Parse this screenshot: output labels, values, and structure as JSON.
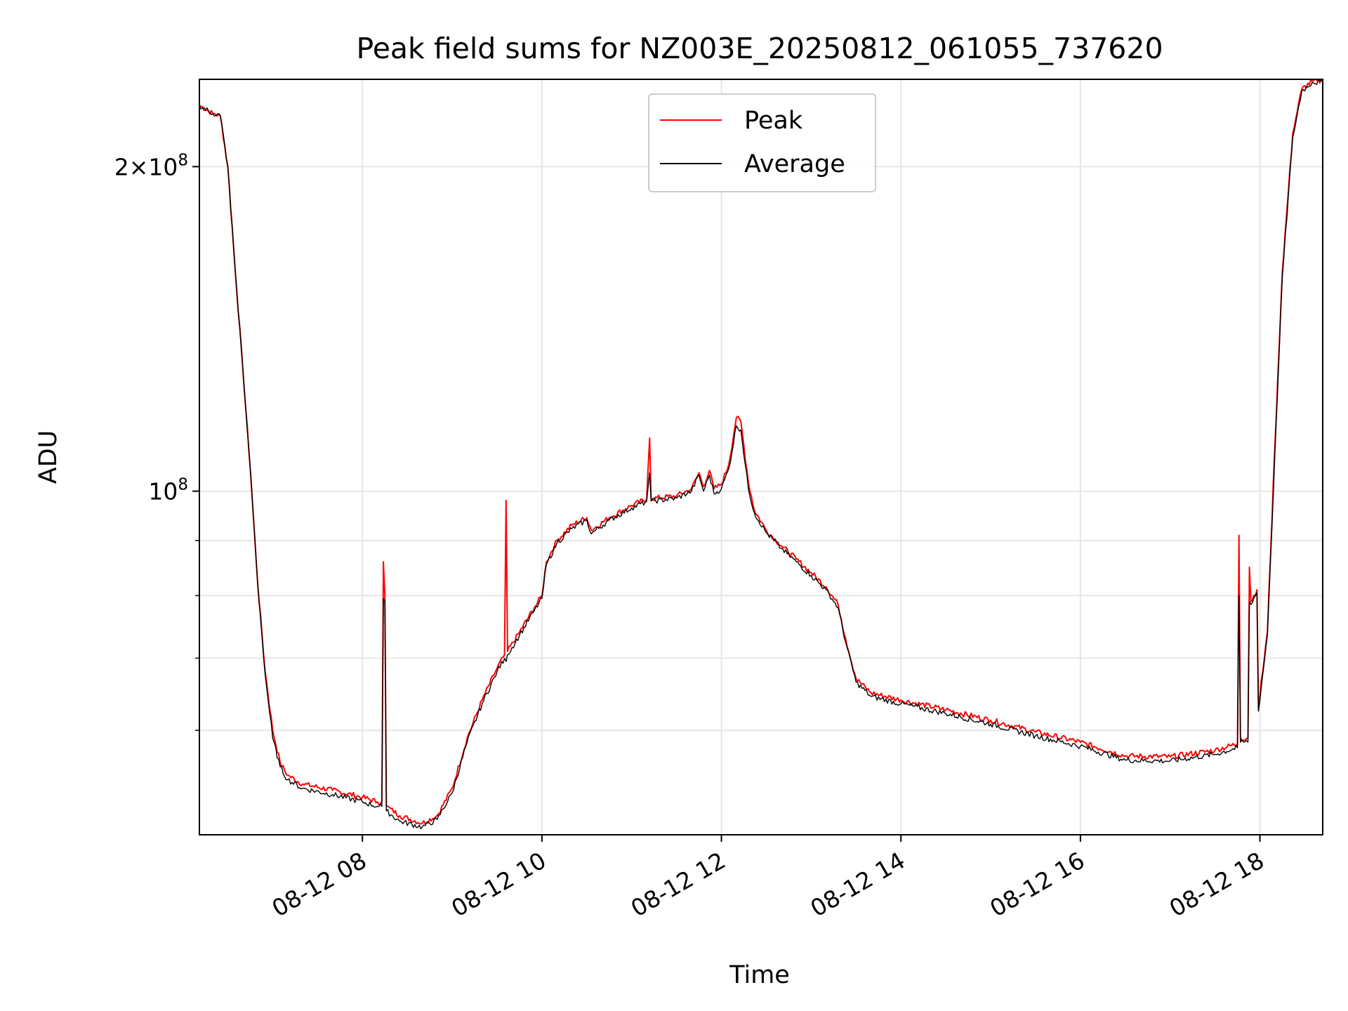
{
  "chart_data": {
    "type": "line",
    "title": "Peak field sums for NZ003E_20250812_061055_737620",
    "xlabel": "Time",
    "ylabel": "ADU",
    "y_scale": "log",
    "grid": true,
    "legend_position": "top-center",
    "xlim": [
      "2025-08-12 06:11",
      "2025-08-12 18:42"
    ],
    "ylim": [
      48000000,
      241000000
    ],
    "x_ticks": [
      "08-12 08",
      "08-12 10",
      "08-12 12",
      "08-12 14",
      "08-12 16",
      "08-12 18"
    ],
    "x_tick_times": [
      "2025-08-12 08:00",
      "2025-08-12 10:00",
      "2025-08-12 12:00",
      "2025-08-12 14:00",
      "2025-08-12 16:00",
      "2025-08-12 18:00"
    ],
    "y_ticks_major": [
      {
        "value": 100000000,
        "base": "10",
        "exp": "8"
      },
      {
        "value": 200000000,
        "prefix": "2×",
        "base": "10",
        "exp": "8"
      }
    ],
    "y_ticks_minor": [
      60000000,
      70000000,
      80000000,
      90000000
    ],
    "series": [
      {
        "name": "Peak",
        "color": "#ff0000",
        "points": [
          [
            "06:11",
            228000000
          ],
          [
            "06:20",
            224000000
          ],
          [
            "06:25",
            223000000
          ],
          [
            "06:30",
            200000000
          ],
          [
            "06:35",
            160000000
          ],
          [
            "06:40",
            130000000
          ],
          [
            "06:45",
            105000000
          ],
          [
            "06:50",
            82000000
          ],
          [
            "06:55",
            68000000
          ],
          [
            "07:00",
            60000000
          ],
          [
            "07:05",
            56000000
          ],
          [
            "07:10",
            54500000
          ],
          [
            "07:20",
            53500000
          ],
          [
            "07:40",
            52800000
          ],
          [
            "08:00",
            52000000
          ],
          [
            "08:10",
            51500000
          ],
          [
            "08:13",
            51500000
          ],
          [
            "08:14",
            86000000
          ],
          [
            "08:15",
            80000000
          ],
          [
            "08:16",
            51000000
          ],
          [
            "08:25",
            50000000
          ],
          [
            "08:40",
            49200000
          ],
          [
            "08:50",
            50000000
          ],
          [
            "09:00",
            53000000
          ],
          [
            "09:10",
            59000000
          ],
          [
            "09:20",
            64000000
          ],
          [
            "09:30",
            68500000
          ],
          [
            "09:35",
            70500000
          ],
          [
            "09:36",
            98000000
          ],
          [
            "09:37",
            71000000
          ],
          [
            "09:45",
            74000000
          ],
          [
            "09:55",
            78000000
          ],
          [
            "10:00",
            80000000
          ],
          [
            "10:03",
            86000000
          ],
          [
            "10:10",
            90000000
          ],
          [
            "10:20",
            93000000
          ],
          [
            "10:30",
            94500000
          ],
          [
            "10:33",
            92000000
          ],
          [
            "10:45",
            94500000
          ],
          [
            "11:00",
            97000000
          ],
          [
            "11:10",
            98300000
          ],
          [
            "11:12",
            112000000
          ],
          [
            "11:13",
            98400000
          ],
          [
            "11:30",
            99000000
          ],
          [
            "11:40",
            100500000
          ],
          [
            "11:45",
            104000000
          ],
          [
            "11:48",
            101000000
          ],
          [
            "11:52",
            104500000
          ],
          [
            "11:55",
            100500000
          ],
          [
            "12:00",
            101500000
          ],
          [
            "12:05",
            106000000
          ],
          [
            "12:10",
            117000000
          ],
          [
            "12:13",
            116000000
          ],
          [
            "12:18",
            102000000
          ],
          [
            "12:22",
            96000000
          ],
          [
            "12:30",
            92000000
          ],
          [
            "12:40",
            89000000
          ],
          [
            "12:50",
            86500000
          ],
          [
            "13:00",
            84000000
          ],
          [
            "13:10",
            81500000
          ],
          [
            "13:18",
            78500000
          ],
          [
            "13:23",
            73000000
          ],
          [
            "13:30",
            67000000
          ],
          [
            "13:40",
            65000000
          ],
          [
            "14:00",
            64000000
          ],
          [
            "14:30",
            62700000
          ],
          [
            "15:00",
            61300000
          ],
          [
            "15:30",
            59800000
          ],
          [
            "16:00",
            58500000
          ],
          [
            "16:30",
            56800000
          ],
          [
            "17:00",
            56700000
          ],
          [
            "17:30",
            57500000
          ],
          [
            "17:45",
            58300000
          ],
          [
            "17:46",
            91000000
          ],
          [
            "17:47",
            59000000
          ],
          [
            "17:52",
            59000000
          ],
          [
            "17:53",
            85000000
          ],
          [
            "17:54",
            79000000
          ],
          [
            "17:58",
            81000000
          ],
          [
            "17:59",
            63000000
          ],
          [
            "18:05",
            74000000
          ],
          [
            "18:10",
            110000000
          ],
          [
            "18:15",
            160000000
          ],
          [
            "18:22",
            215000000
          ],
          [
            "18:28",
            236000000
          ],
          [
            "18:35",
            240000000
          ],
          [
            "18:42",
            240000000
          ]
        ]
      },
      {
        "name": "Average",
        "color": "#000000",
        "points": [
          [
            "06:11",
            228000000
          ],
          [
            "06:20",
            224000000
          ],
          [
            "06:25",
            223000000
          ],
          [
            "06:30",
            200000000
          ],
          [
            "06:35",
            160000000
          ],
          [
            "06:40",
            130000000
          ],
          [
            "06:45",
            105000000
          ],
          [
            "06:50",
            82000000
          ],
          [
            "06:55",
            67500000
          ],
          [
            "07:00",
            59000000
          ],
          [
            "07:05",
            55500000
          ],
          [
            "07:10",
            54000000
          ],
          [
            "07:20",
            53000000
          ],
          [
            "07:40",
            52300000
          ],
          [
            "08:00",
            51500000
          ],
          [
            "08:10",
            51000000
          ],
          [
            "08:13",
            51000000
          ],
          [
            "08:14",
            79500000
          ],
          [
            "08:15",
            79000000
          ],
          [
            "08:16",
            50500000
          ],
          [
            "08:25",
            49400000
          ],
          [
            "08:40",
            48800000
          ],
          [
            "08:50",
            49600000
          ],
          [
            "09:00",
            52500000
          ],
          [
            "09:10",
            58500000
          ],
          [
            "09:20",
            63500000
          ],
          [
            "09:30",
            68000000
          ],
          [
            "09:35",
            70000000
          ],
          [
            "09:36",
            69500000
          ],
          [
            "09:37",
            70500000
          ],
          [
            "09:45",
            73500000
          ],
          [
            "09:55",
            77500000
          ],
          [
            "10:00",
            79500000
          ],
          [
            "10:03",
            85500000
          ],
          [
            "10:10",
            89500000
          ],
          [
            "10:20",
            92300000
          ],
          [
            "10:30",
            94000000
          ],
          [
            "10:33",
            91300000
          ],
          [
            "10:45",
            94000000
          ],
          [
            "11:00",
            96500000
          ],
          [
            "11:10",
            97800000
          ],
          [
            "11:12",
            104000000
          ],
          [
            "11:13",
            97900000
          ],
          [
            "11:30",
            98500000
          ],
          [
            "11:40",
            100000000
          ],
          [
            "11:45",
            103500000
          ],
          [
            "11:48",
            100000000
          ],
          [
            "11:52",
            103500000
          ],
          [
            "11:55",
            99500000
          ],
          [
            "12:00",
            100500000
          ],
          [
            "12:05",
            105000000
          ],
          [
            "12:10",
            115000000
          ],
          [
            "12:13",
            114000000
          ],
          [
            "12:18",
            100500000
          ],
          [
            "12:22",
            95500000
          ],
          [
            "12:30",
            91500000
          ],
          [
            "12:40",
            88500000
          ],
          [
            "12:50",
            86000000
          ],
          [
            "13:00",
            83500000
          ],
          [
            "13:10",
            81000000
          ],
          [
            "13:18",
            78000000
          ],
          [
            "13:23",
            72500000
          ],
          [
            "13:30",
            66500000
          ],
          [
            "13:40",
            64500000
          ],
          [
            "14:00",
            63500000
          ],
          [
            "14:30",
            62200000
          ],
          [
            "15:00",
            60800000
          ],
          [
            "15:30",
            59300000
          ],
          [
            "16:00",
            58000000
          ],
          [
            "16:30",
            56300000
          ],
          [
            "17:00",
            56200000
          ],
          [
            "17:30",
            57000000
          ],
          [
            "17:45",
            57800000
          ],
          [
            "17:46",
            80000000
          ],
          [
            "17:47",
            58500000
          ],
          [
            "17:52",
            58500000
          ],
          [
            "17:53",
            79000000
          ],
          [
            "17:54",
            78500000
          ],
          [
            "17:58",
            80500000
          ],
          [
            "17:59",
            62500000
          ],
          [
            "18:05",
            73500000
          ],
          [
            "18:10",
            108000000
          ],
          [
            "18:15",
            158000000
          ],
          [
            "18:22",
            213000000
          ],
          [
            "18:28",
            235000000
          ],
          [
            "18:35",
            239500000
          ],
          [
            "18:42",
            239500000
          ]
        ]
      }
    ]
  }
}
